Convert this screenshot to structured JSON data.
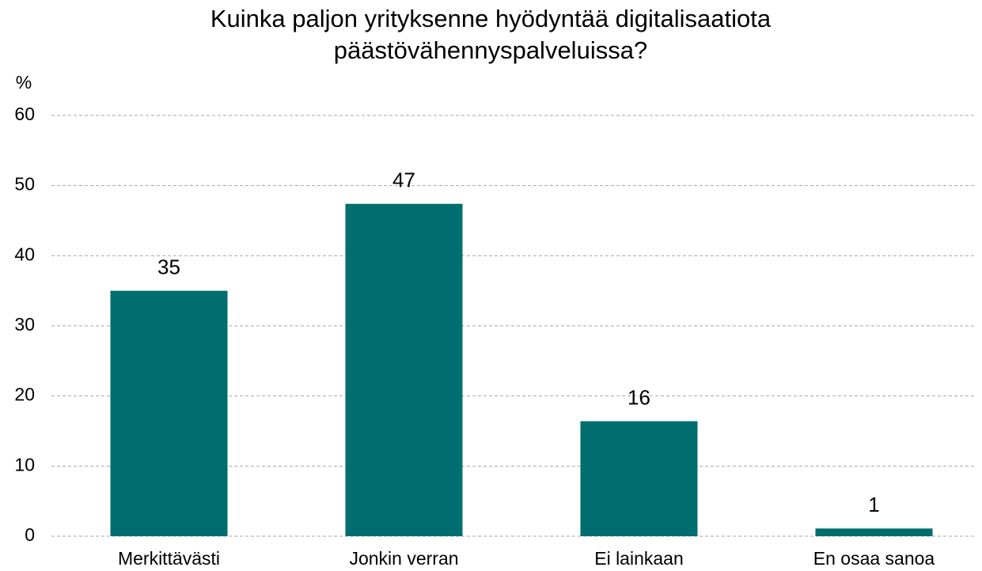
{
  "chart_data": {
    "type": "bar",
    "title": "Kuinka paljon yrityksenne hyödyntää digitalisaatiota päästövähennyspalveluissa?",
    "y_label": "%",
    "categories": [
      "Merkittävästi",
      "Jonkin verran",
      "Ei lainkaan",
      "En osaa sanoa"
    ],
    "values": [
      35,
      47.4,
      16.4,
      1.1
    ],
    "value_labels": [
      "35",
      "47",
      "16",
      "1"
    ],
    "color": "#006e6e",
    "ylim": [
      0,
      60
    ],
    "yticks": [
      0,
      10,
      20,
      30,
      40,
      50,
      60
    ],
    "grid": true
  }
}
